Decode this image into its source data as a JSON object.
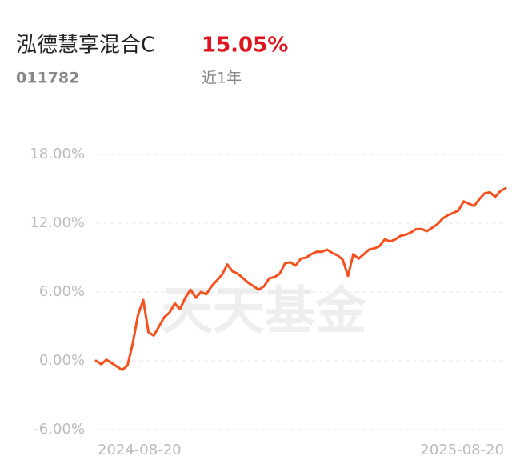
{
  "header": {
    "title": "泓德慧享混合C",
    "return": "15.05%",
    "code": "011782",
    "period": "近1年"
  },
  "chart_data": {
    "type": "line",
    "watermark": "天天基金",
    "categories": [
      "2024-08-20",
      null,
      null,
      null,
      null,
      null,
      null,
      null,
      null,
      null,
      null,
      null,
      null,
      null,
      null,
      null,
      null,
      null,
      null,
      null,
      null,
      null,
      null,
      null,
      null,
      null,
      null,
      null,
      null,
      null,
      null,
      null,
      null,
      null,
      null,
      null,
      null,
      null,
      null,
      null,
      null,
      null,
      null,
      null,
      null,
      null,
      null,
      null,
      null,
      null,
      null,
      null,
      null,
      null,
      null,
      null,
      null,
      null,
      null,
      null,
      null,
      null,
      null,
      null,
      null,
      null,
      null,
      null,
      null,
      null,
      null,
      null,
      null,
      null,
      null,
      null,
      null,
      null,
      "2025-08-20"
    ],
    "series": [
      {
        "color": "#f4511e",
        "values": [
          0,
          -0.3,
          0.1,
          -0.2,
          -0.5,
          -0.8,
          -0.4,
          1.5,
          4,
          5.3,
          2.5,
          2.2,
          3,
          3.8,
          4.2,
          5,
          4.5,
          5.5,
          6.2,
          5.5,
          6,
          5.8,
          6.5,
          7,
          7.5,
          8.4,
          7.8,
          7.6,
          7.2,
          6.8,
          6.5,
          6.2,
          6.5,
          7.2,
          7.3,
          7.6,
          8.5,
          8.6,
          8.3,
          8.9,
          9.0,
          9.3,
          9.5,
          9.5,
          9.7,
          9.4,
          9.2,
          8.8,
          7.4,
          9.3,
          8.9,
          9.3,
          9.7,
          9.8,
          10.0,
          10.6,
          10.4,
          10.6,
          10.9,
          11.0,
          11.2,
          11.5,
          11.5,
          11.3,
          11.6,
          11.9,
          12.4,
          12.7,
          12.9,
          13.1,
          13.9,
          13.7,
          13.5,
          14.1,
          14.6,
          14.7,
          14.3,
          14.8,
          15.05
        ]
      }
    ],
    "ylim": [
      -6,
      18
    ],
    "yticks": [
      {
        "value": -6,
        "label": "-6.00%"
      },
      {
        "value": 0,
        "label": "0.00%"
      },
      {
        "value": 6,
        "label": "6.00%"
      },
      {
        "value": 12,
        "label": "12.00%"
      },
      {
        "value": 18,
        "label": "18.00%"
      }
    ],
    "grid": true
  }
}
